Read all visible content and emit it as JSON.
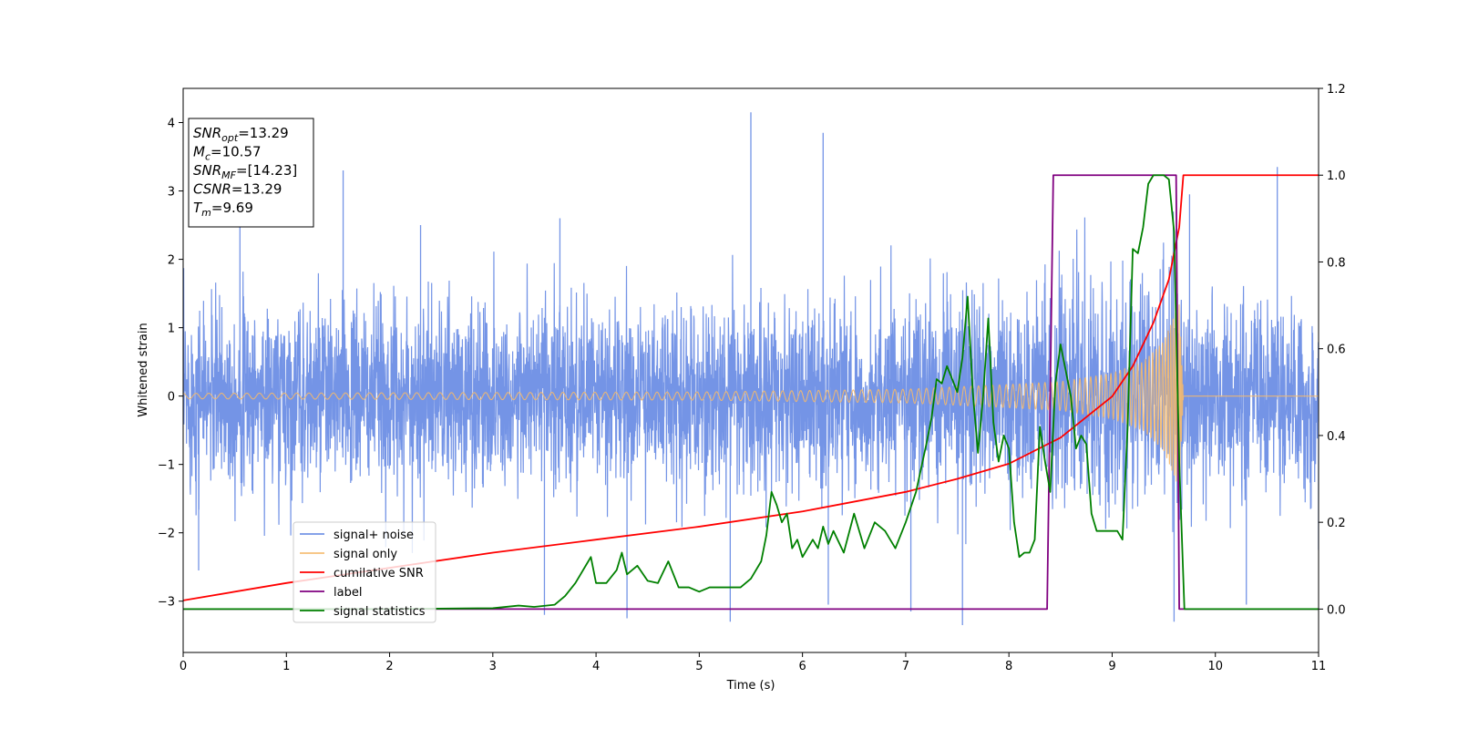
{
  "chart_data": {
    "type": "line",
    "xlabel": "Time (s)",
    "ylabel": "Whitened strain",
    "xlim": [
      0,
      11
    ],
    "ylim_left": [
      -3.75,
      4.5
    ],
    "ylim_right": [
      -0.1,
      1.2
    ],
    "x_ticks": [
      0,
      1,
      2,
      3,
      4,
      5,
      6,
      7,
      8,
      9,
      10,
      11
    ],
    "y_ticks_left": [
      -3,
      -2,
      -1,
      0,
      1,
      2,
      3,
      4
    ],
    "y_ticks_right": [
      0.0,
      0.2,
      0.4,
      0.6,
      0.8,
      1.0,
      1.2
    ],
    "y_ticks_left_labels": [
      "−3",
      "−2",
      "−1",
      "0",
      "1",
      "2",
      "3",
      "4"
    ],
    "y_ticks_right_labels": [
      "0.0",
      "0.2",
      "0.4",
      "0.6",
      "0.8",
      "1.0",
      "1.2"
    ],
    "legend_position": "lower-left",
    "info_box": {
      "lines": [
        {
          "sym": "SNR",
          "sub": "opt",
          "value": "=13.29"
        },
        {
          "sym": "M",
          "sub": "c",
          "value": "=10.57"
        },
        {
          "sym": "SNR",
          "sub": "MF",
          "value": "=[14.23]"
        },
        {
          "sym": "CSNR",
          "sub": "",
          "value": "=13.29"
        },
        {
          "sym": "T",
          "sub": "m",
          "value": "=9.69"
        }
      ]
    },
    "series": [
      {
        "name": "signal+ noise",
        "color": "#7494e6",
        "axis": "left",
        "kind": "noise",
        "envelope": [
          [
            0,
            1.1
          ],
          [
            7.0,
            1.1
          ],
          [
            9.0,
            1.25
          ],
          [
            9.65,
            1.6
          ],
          [
            9.7,
            1.1
          ],
          [
            11,
            1.1
          ]
        ],
        "spikes": [
          [
            0.15,
            -2.55
          ],
          [
            0.55,
            2.55
          ],
          [
            1.55,
            3.3
          ],
          [
            2.3,
            2.5
          ],
          [
            3.5,
            -3.2
          ],
          [
            3.65,
            2.6
          ],
          [
            4.3,
            -3.25
          ],
          [
            5.5,
            4.15
          ],
          [
            5.3,
            -3.3
          ],
          [
            6.2,
            3.85
          ],
          [
            6.25,
            -3.05
          ],
          [
            7.05,
            -3.15
          ],
          [
            7.55,
            -3.35
          ],
          [
            9.6,
            -3.3
          ],
          [
            9.75,
            2.95
          ],
          [
            10.3,
            -3.05
          ],
          [
            10.6,
            3.35
          ],
          [
            11.0,
            -2.25
          ]
        ]
      },
      {
        "name": "signal only",
        "color": "#f5b96b",
        "axis": "left",
        "kind": "chirp",
        "amplitude": [
          [
            0,
            0.04
          ],
          [
            5,
            0.06
          ],
          [
            7,
            0.1
          ],
          [
            8,
            0.17
          ],
          [
            8.5,
            0.21
          ],
          [
            9.0,
            0.33
          ],
          [
            9.3,
            0.5
          ],
          [
            9.5,
            0.8
          ],
          [
            9.65,
            1.35
          ],
          [
            9.69,
            0
          ]
        ]
      },
      {
        "name": "cumilative SNR",
        "color": "#ff0000",
        "axis": "right",
        "x": [
          0,
          1,
          2,
          3,
          4,
          5,
          6,
          7,
          7.5,
          8,
          8.5,
          9,
          9.2,
          9.4,
          9.55,
          9.65,
          9.69,
          9.7,
          11
        ],
        "y": [
          0.02,
          0.06,
          0.095,
          0.13,
          0.16,
          0.19,
          0.225,
          0.27,
          0.3,
          0.335,
          0.395,
          0.49,
          0.56,
          0.66,
          0.76,
          0.88,
          1.0,
          1.0,
          1.0
        ]
      },
      {
        "name": "label",
        "color": "#800080",
        "axis": "right",
        "x": [
          0,
          8.37,
          8.43,
          9.62,
          9.65,
          11
        ],
        "y": [
          0,
          0,
          1,
          1,
          0,
          0
        ]
      },
      {
        "name": "signal statistics",
        "color": "#008000",
        "axis": "right",
        "x": [
          0,
          1,
          2,
          3,
          3.25,
          3.4,
          3.6,
          3.7,
          3.8,
          3.9,
          3.95,
          4.0,
          4.1,
          4.2,
          4.25,
          4.3,
          4.4,
          4.5,
          4.6,
          4.7,
          4.8,
          4.9,
          5.0,
          5.1,
          5.2,
          5.3,
          5.4,
          5.5,
          5.6,
          5.65,
          5.7,
          5.75,
          5.8,
          5.85,
          5.9,
          5.95,
          6.0,
          6.05,
          6.1,
          6.15,
          6.2,
          6.25,
          6.3,
          6.4,
          6.5,
          6.6,
          6.7,
          6.8,
          6.9,
          7.0,
          7.1,
          7.2,
          7.25,
          7.3,
          7.35,
          7.4,
          7.5,
          7.55,
          7.6,
          7.65,
          7.7,
          7.75,
          7.8,
          7.85,
          7.9,
          7.95,
          8.0,
          8.05,
          8.1,
          8.15,
          8.2,
          8.25,
          8.3,
          8.35,
          8.4,
          8.45,
          8.5,
          8.55,
          8.6,
          8.65,
          8.7,
          8.75,
          8.8,
          8.85,
          8.9,
          8.95,
          9.0,
          9.05,
          9.1,
          9.15,
          9.2,
          9.25,
          9.3,
          9.35,
          9.4,
          9.45,
          9.5,
          9.55,
          9.6,
          9.62,
          9.65,
          9.7,
          9.75,
          10,
          11
        ],
        "y": [
          0.0,
          0.0,
          0.0,
          0.002,
          0.008,
          0.005,
          0.01,
          0.03,
          0.06,
          0.1,
          0.12,
          0.06,
          0.06,
          0.09,
          0.13,
          0.08,
          0.1,
          0.065,
          0.06,
          0.11,
          0.05,
          0.05,
          0.04,
          0.05,
          0.05,
          0.05,
          0.05,
          0.07,
          0.11,
          0.17,
          0.27,
          0.24,
          0.2,
          0.22,
          0.14,
          0.16,
          0.12,
          0.14,
          0.16,
          0.14,
          0.19,
          0.15,
          0.18,
          0.13,
          0.22,
          0.14,
          0.2,
          0.18,
          0.14,
          0.2,
          0.27,
          0.38,
          0.44,
          0.53,
          0.52,
          0.56,
          0.5,
          0.58,
          0.72,
          0.5,
          0.36,
          0.49,
          0.67,
          0.43,
          0.34,
          0.4,
          0.37,
          0.2,
          0.12,
          0.13,
          0.13,
          0.16,
          0.42,
          0.34,
          0.27,
          0.52,
          0.61,
          0.55,
          0.49,
          0.37,
          0.4,
          0.38,
          0.22,
          0.18,
          0.18,
          0.18,
          0.18,
          0.18,
          0.16,
          0.42,
          0.83,
          0.82,
          0.88,
          0.98,
          1.0,
          1.0,
          1.0,
          0.99,
          0.87,
          0.65,
          0.34,
          0.0,
          0.0,
          0.0,
          0.0
        ]
      }
    ]
  }
}
